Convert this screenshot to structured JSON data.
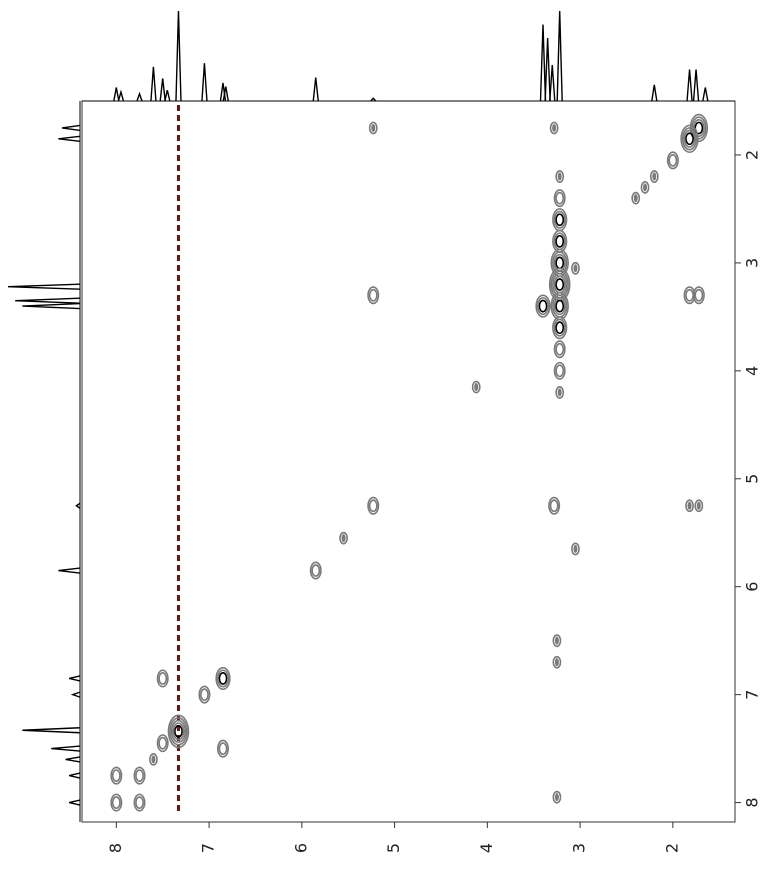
{
  "chart_data": {
    "type": "contour",
    "xlim": [
      8.37,
      1.33
    ],
    "ylim": [
      1.5,
      8.18
    ],
    "xticks": [
      8,
      7,
      6,
      5,
      4,
      3,
      2
    ],
    "yticks": [
      2,
      3,
      4,
      5,
      6,
      7,
      8
    ],
    "series": [
      {
        "color": "#7a7a7a",
        "x": [
          1.72,
          1.82,
          2.0,
          2.2,
          2.3,
          2.4,
          3.22,
          3.22,
          3.22,
          3.22,
          3.22,
          3.22,
          3.22,
          3.22,
          3.22,
          3.22,
          3.22,
          3.4,
          3.05,
          3.28,
          5.23,
          5.23,
          5.23,
          3.28,
          1.82,
          1.72,
          1.82,
          1.72,
          4.12,
          3.05,
          5.55,
          5.85,
          3.25,
          3.25,
          3.25,
          7.5,
          6.85,
          7.05,
          7.33,
          7.5,
          6.85,
          7.6,
          7.75,
          8.0,
          8.0,
          7.75
        ],
        "values": [
          1.75,
          1.85,
          2.05,
          2.2,
          2.3,
          2.4,
          2.2,
          2.4,
          2.6,
          2.8,
          3.0,
          3.2,
          3.4,
          3.6,
          3.8,
          4.0,
          4.2,
          3.4,
          3.05,
          1.75,
          1.75,
          3.3,
          5.25,
          5.25,
          3.3,
          3.3,
          5.25,
          5.25,
          4.15,
          5.65,
          5.55,
          5.85,
          6.5,
          6.7,
          7.95,
          6.85,
          6.85,
          7.0,
          7.34,
          7.45,
          7.5,
          7.6,
          7.75,
          7.75,
          8.0,
          8.0
        ],
        "sizes": [
          4,
          4,
          2,
          1,
          1,
          1,
          1,
          2,
          3,
          3,
          4,
          5,
          4,
          3,
          2,
          2,
          1,
          3,
          1,
          1,
          1,
          2,
          2,
          2,
          2,
          2,
          1,
          1,
          1,
          1,
          1,
          2,
          1,
          1,
          1,
          2,
          3,
          2,
          5,
          2,
          2,
          1,
          2,
          2,
          2,
          2
        ]
      }
    ],
    "ridge": {
      "x": 7.33,
      "color": "#5c1a1a"
    },
    "projection_top": {
      "color": "#000000",
      "x": [
        8.0,
        7.95,
        7.75,
        7.6,
        7.5,
        7.45,
        7.33,
        7.05,
        6.85,
        6.82,
        5.85,
        5.23,
        3.4,
        3.35,
        3.3,
        3.22,
        2.2,
        1.82,
        1.75,
        1.65
      ],
      "values": [
        15,
        10,
        8,
        38,
        25,
        12,
        100,
        42,
        20,
        16,
        26,
        3,
        85,
        70,
        40,
        100,
        18,
        35,
        35,
        15
      ]
    },
    "projection_left": {
      "color": "#000000",
      "ppm": [
        1.75,
        1.85,
        3.22,
        3.35,
        3.4,
        5.25,
        5.85,
        6.85,
        7.0,
        7.33,
        7.5,
        7.6,
        7.75,
        8.0
      ],
      "values": [
        25,
        30,
        100,
        90,
        80,
        5,
        30,
        15,
        10,
        80,
        40,
        20,
        15,
        15
      ]
    }
  }
}
